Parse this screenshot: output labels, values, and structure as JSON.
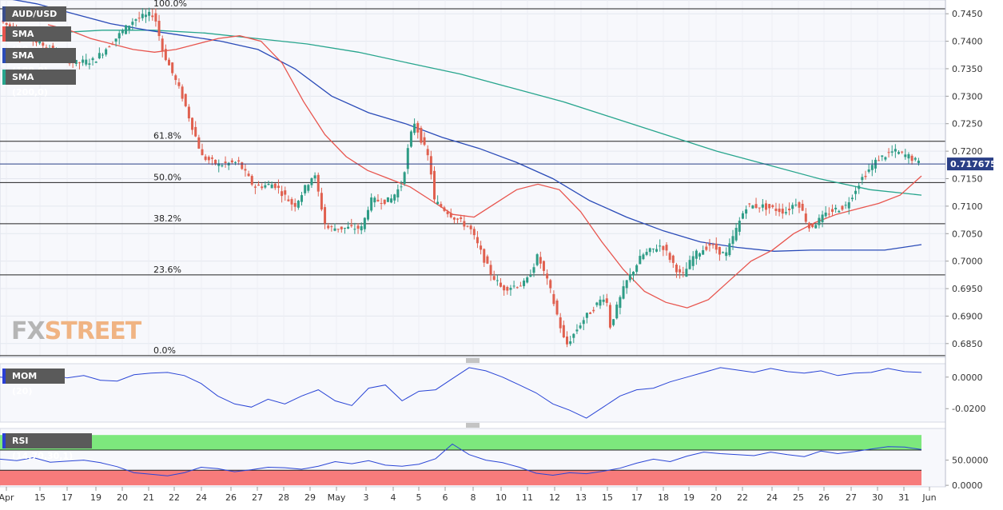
{
  "symbol": "AUD/USD",
  "legend": [
    {
      "label": "SMA (20,0)",
      "color": "#e8554e"
    },
    {
      "label": "SMA (100,0)",
      "color": "#2a4bb8"
    },
    {
      "label": "SMA (200,0)",
      "color": "#27a58d"
    }
  ],
  "watermark": {
    "part1": "FX",
    "part2": "STREET"
  },
  "current_price": "0.717675",
  "mom_label": "MOM (20)",
  "rsi_label": "RSI (14,70,30,1)",
  "colors": {
    "up": "#2e9c86",
    "down": "#e0604f",
    "sma20": "#e8554e",
    "sma100": "#2a4bb8",
    "sma200": "#27a58d",
    "osc": "#2a45d6",
    "price_tag": "#2a3f86",
    "rsi_high": "#7de87d",
    "rsi_low": "#f77b7b"
  },
  "chart_data": [
    {
      "type": "candlestick",
      "title": "AUD/USD",
      "ylim": [
        0.6825,
        0.7475
      ],
      "y_ticks": [
        "0.7450",
        "0.7400",
        "0.7350",
        "0.7300",
        "0.7250",
        "0.7200",
        "0.7150",
        "0.7100",
        "0.7050",
        "0.7000",
        "0.6950",
        "0.6900",
        "0.6850"
      ],
      "x_ticks": [
        "Apr",
        "15",
        "17",
        "19",
        "20",
        "21",
        "22",
        "24",
        "26",
        "27",
        "28",
        "29",
        "May",
        "3",
        "4",
        "5",
        "6",
        "8",
        "10",
        "11",
        "12",
        "13",
        "15",
        "17",
        "18",
        "19",
        "20",
        "22",
        "24",
        "25",
        "26",
        "27",
        "30",
        "31",
        "Jun"
      ],
      "fibonacci": [
        {
          "label": "100.0%",
          "value": 0.7459
        },
        {
          "label": "61.8%",
          "value": 0.7218
        },
        {
          "label": "50.0%",
          "value": 0.7143
        },
        {
          "label": "38.2%",
          "value": 0.7068
        },
        {
          "label": "23.6%",
          "value": 0.6975
        },
        {
          "label": "0.0%",
          "value": 0.6828
        }
      ],
      "current_value": 0.717675,
      "sma_20": [
        0.743,
        0.742,
        0.7405,
        0.7395,
        0.7385,
        0.738,
        0.7385,
        0.7395,
        0.7405,
        0.741,
        0.74,
        0.736,
        0.729,
        0.723,
        0.719,
        0.7165,
        0.715,
        0.7135,
        0.711,
        0.7085,
        0.708,
        0.7105,
        0.713,
        0.714,
        0.713,
        0.709,
        0.7035,
        0.6985,
        0.6945,
        0.6925,
        0.6915,
        0.693,
        0.6965,
        0.7,
        0.702,
        0.705,
        0.707,
        0.7085,
        0.7095,
        0.7105,
        0.712,
        0.7155
      ],
      "sma_100": [
        0.748,
        0.7468,
        0.745,
        0.7432,
        0.742,
        0.741,
        0.74,
        0.7385,
        0.735,
        0.73,
        0.727,
        0.725,
        0.7225,
        0.7205,
        0.718,
        0.715,
        0.711,
        0.708,
        0.7055,
        0.7035,
        0.7025,
        0.7018,
        0.702,
        0.702,
        0.702,
        0.703
      ],
      "sma_200": [
        0.741,
        0.7415,
        0.742,
        0.742,
        0.7415,
        0.7405,
        0.7395,
        0.738,
        0.736,
        0.734,
        0.7315,
        0.729,
        0.726,
        0.723,
        0.72,
        0.7175,
        0.715,
        0.713,
        0.712
      ],
      "candles_desc": "hourly candles digitized from image",
      "candle_count": 280
    },
    {
      "type": "line",
      "title": "MOM (20)",
      "ylim": [
        -0.0285,
        0.0085
      ],
      "y_ticks": [
        "0.0000",
        "-0.0200"
      ],
      "values": [
        0.0,
        -0.001,
        0.0005,
        0.002,
        -0.0005,
        0.001,
        -0.002,
        -0.0025,
        0.0015,
        0.0025,
        0.003,
        0.001,
        -0.004,
        -0.012,
        -0.017,
        -0.019,
        -0.014,
        -0.017,
        -0.012,
        -0.008,
        -0.015,
        -0.018,
        -0.007,
        -0.005,
        -0.015,
        -0.009,
        -0.008,
        -0.001,
        0.006,
        0.004,
        0.0,
        -0.005,
        -0.01,
        -0.017,
        -0.021,
        -0.026,
        -0.019,
        -0.012,
        -0.008,
        -0.007,
        -0.003,
        0.0,
        0.003,
        0.006,
        0.0045,
        0.003,
        0.0055,
        0.0035,
        0.0025,
        0.004,
        0.001,
        0.0025,
        0.003,
        0.0055,
        0.0035,
        0.003
      ]
    },
    {
      "type": "line",
      "title": "RSI (14,70,30,1)",
      "ylim": [
        -3,
        113
      ],
      "y_ticks": [
        "50.0000",
        "0.0000"
      ],
      "levels": [
        30,
        70
      ],
      "values": [
        52,
        49,
        55,
        46,
        48,
        50,
        45,
        37,
        25,
        22,
        19,
        25,
        36,
        33,
        27,
        31,
        36,
        35,
        32,
        38,
        47,
        43,
        49,
        40,
        38,
        42,
        53,
        82,
        61,
        50,
        45,
        36,
        24,
        20,
        25,
        23,
        28,
        34,
        44,
        52,
        47,
        58,
        66,
        63,
        61,
        59,
        66,
        61,
        57,
        68,
        63,
        67,
        72,
        77,
        76,
        71
      ]
    }
  ]
}
